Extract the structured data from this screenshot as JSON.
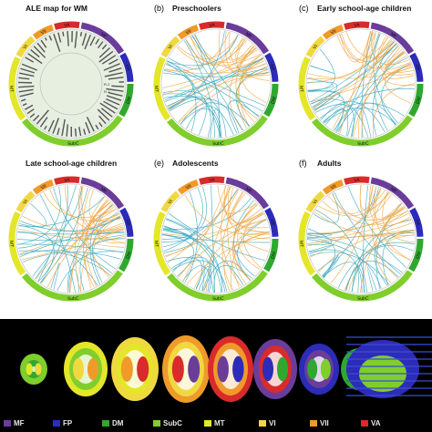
{
  "panels": [
    {
      "id": "a",
      "tag": "",
      "title": "ALE map for WM",
      "kind": "ale",
      "extra": [
        "R-2",
        "R-1"
      ]
    },
    {
      "id": "b",
      "tag": "(b)",
      "title": "Preschoolers",
      "kind": "circos",
      "seed": 11
    },
    {
      "id": "c",
      "tag": "(c)",
      "title": "Early school-age children",
      "kind": "circos",
      "seed": 23
    },
    {
      "id": "d",
      "tag": "",
      "title": "Late school-age children",
      "kind": "circos",
      "seed": 37
    },
    {
      "id": "e",
      "tag": "(e)",
      "title": "Adolescents",
      "kind": "circos",
      "seed": 51
    },
    {
      "id": "f",
      "tag": "(f)",
      "title": "Adults",
      "kind": "circos",
      "seed": 67
    }
  ],
  "networks": [
    {
      "key": "MF",
      "color": "#6a3d9a"
    },
    {
      "key": "FP",
      "color": "#2c2cb8"
    },
    {
      "key": "DM",
      "color": "#2fa82f"
    },
    {
      "key": "SubC",
      "color": "#7fce2c"
    },
    {
      "key": "MT",
      "color": "#e4e62a"
    },
    {
      "key": "VI",
      "color": "#f0d840"
    },
    {
      "key": "VII",
      "color": "#f09a2a"
    },
    {
      "key": "VA",
      "color": "#d92b2b"
    }
  ],
  "arc_labels": [
    "VI",
    "VII",
    "VA",
    "MF",
    "FP",
    "DM",
    "SubC",
    "MT"
  ],
  "legend": [
    {
      "label": "MF",
      "color": "#6a3d9a"
    },
    {
      "label": "FP",
      "color": "#2c2cb8"
    },
    {
      "label": "DM",
      "color": "#2fa82f"
    },
    {
      "label": "SubC",
      "color": "#7fce2c"
    },
    {
      "label": "MT",
      "color": "#e4e62a"
    },
    {
      "label": "VI",
      "color": "#f0d840"
    },
    {
      "label": "VII",
      "color": "#f09a2a"
    },
    {
      "label": "VA",
      "color": "#d92b2b"
    }
  ],
  "colors": {
    "chord_orange": "#f0a848",
    "chord_cyan": "#3aa8c0",
    "ale_bg": "#e6efe0",
    "ale_bar": "#555555"
  }
}
